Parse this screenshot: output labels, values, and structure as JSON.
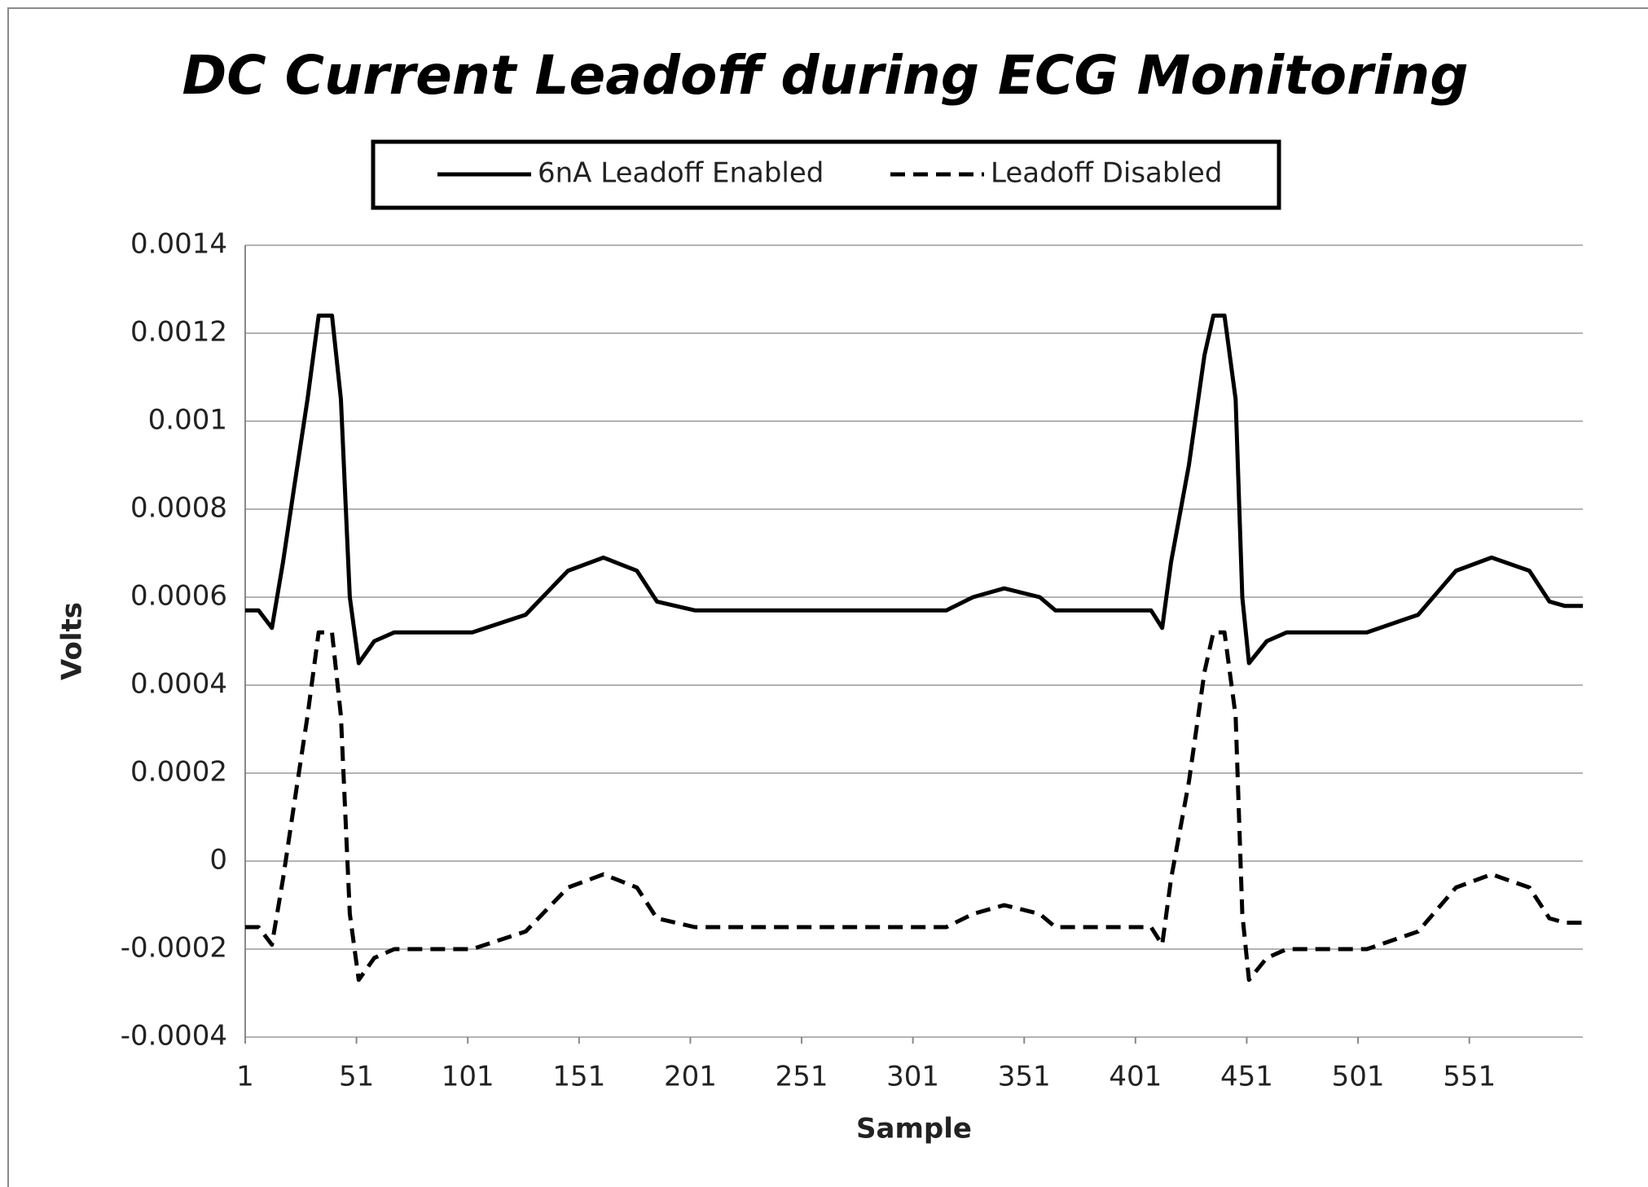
{
  "chart_data": {
    "type": "line",
    "title": "DC Current Leadoff during ECG Monitoring",
    "x_label": "Sample",
    "y_label": "Volts",
    "x": [
      1,
      7,
      13,
      18,
      23,
      29,
      34,
      40,
      44,
      48,
      52,
      59,
      68,
      103,
      127,
      146,
      162,
      177,
      186,
      203,
      316,
      328,
      342,
      358,
      365,
      408,
      413,
      417,
      425,
      432,
      436,
      441,
      446,
      449,
      452,
      460,
      469,
      505,
      528,
      545,
      561,
      578,
      587,
      594,
      602
    ],
    "series": [
      {
        "name": "6nA Leadoff Enabled",
        "color": "#000000",
        "dash": "solid",
        "values": [
          0.00057,
          0.00057,
          0.00053,
          0.00068,
          0.00085,
          0.00105,
          0.00124,
          0.00124,
          0.00105,
          0.0006,
          0.00045,
          0.0005,
          0.00052,
          0.00052,
          0.00056,
          0.00066,
          0.00069,
          0.00066,
          0.00059,
          0.00057,
          0.00057,
          0.0006,
          0.00062,
          0.0006,
          0.00057,
          0.00057,
          0.00053,
          0.00068,
          0.0009,
          0.00115,
          0.00124,
          0.00124,
          0.00105,
          0.0006,
          0.00045,
          0.0005,
          0.00052,
          0.00052,
          0.00056,
          0.00066,
          0.00069,
          0.00066,
          0.00059,
          0.00058,
          0.00058
        ]
      },
      {
        "name": "Leadoff Disabled",
        "color": "#000000",
        "dash": "dashed",
        "values": [
          -0.00015,
          -0.00015,
          -0.00019,
          -4e-05,
          0.00013,
          0.00033,
          0.00052,
          0.00052,
          0.00033,
          -0.00012,
          -0.00027,
          -0.00022,
          -0.0002,
          -0.0002,
          -0.00016,
          -6e-05,
          -3e-05,
          -6e-05,
          -0.00013,
          -0.00015,
          -0.00015,
          -0.00012,
          -0.0001,
          -0.00012,
          -0.00015,
          -0.00015,
          -0.00019,
          -4e-05,
          0.00018,
          0.00043,
          0.00052,
          0.00052,
          0.00033,
          -0.00012,
          -0.00027,
          -0.00022,
          -0.0002,
          -0.0002,
          -0.00016,
          -6e-05,
          -3e-05,
          -6e-05,
          -0.00013,
          -0.00014,
          -0.00014
        ]
      }
    ],
    "xlim": [
      1,
      602
    ],
    "xticks": [
      1,
      51,
      101,
      151,
      201,
      251,
      301,
      351,
      401,
      451,
      501,
      551
    ],
    "ylim": [
      -0.0004,
      0.0014
    ],
    "yticks": [
      -0.0004,
      -0.0002,
      0,
      0.0002,
      0.0004,
      0.0006,
      0.0008,
      0.001,
      0.0012,
      0.0014
    ],
    "grid": true,
    "legend": "top"
  }
}
